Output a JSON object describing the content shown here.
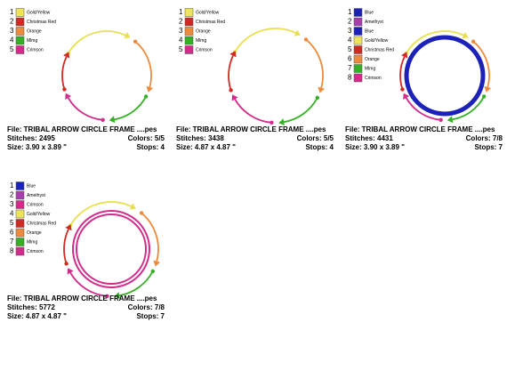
{
  "panels": [
    {
      "legend": [
        {
          "number": "1",
          "color": "#efe35a",
          "name": "Gold/Yellow"
        },
        {
          "number": "2",
          "color": "#d22a22",
          "name": "Christmas Red"
        },
        {
          "number": "3",
          "color": "#ee8a3c",
          "name": "Orange"
        },
        {
          "number": "4",
          "color": "#33b024",
          "name": "Mlmg"
        },
        {
          "number": "5",
          "color": "#d42a8c",
          "name": "Crimson"
        }
      ],
      "file": "File: TRIBAL ARROW CIRCLE FRAME ....pes",
      "stitches": "Stitches: 2495",
      "colors": "Colors: 5/5",
      "size": "Size: 3.90 x 3.89 \"",
      "stops": "Stops: 4"
    },
    {
      "legend": [
        {
          "number": "1",
          "color": "#efe35a",
          "name": "Gold/Yellow"
        },
        {
          "number": "2",
          "color": "#d22a22",
          "name": "Christmas Red"
        },
        {
          "number": "3",
          "color": "#ee8a3c",
          "name": "Orange"
        },
        {
          "number": "4",
          "color": "#33b024",
          "name": "Mlmg"
        },
        {
          "number": "5",
          "color": "#d42a8c",
          "name": "Crimson"
        }
      ],
      "file": "File: TRIBAL ARROW CIRCLE FRAME ....pes",
      "stitches": "Stitches: 3438",
      "colors": "Colors: 5/5",
      "size": "Size: 4.87 x 4.87 \"",
      "stops": "Stops: 4"
    },
    {
      "legend": [
        {
          "number": "1",
          "color": "#1c22b8",
          "name": "Blue"
        },
        {
          "number": "2",
          "color": "#a83cb0",
          "name": "Amethyst"
        },
        {
          "number": "3",
          "color": "#1c22b8",
          "name": "Blue"
        },
        {
          "number": "4",
          "color": "#efe35a",
          "name": "Gold/Yellow"
        },
        {
          "number": "5",
          "color": "#d22a22",
          "name": "Christmas Red"
        },
        {
          "number": "6",
          "color": "#ee8a3c",
          "name": "Orange"
        },
        {
          "number": "7",
          "color": "#33b024",
          "name": "Mlmg"
        },
        {
          "number": "8",
          "color": "#d42a8c",
          "name": "Crimson"
        }
      ],
      "file": "File: TRIBAL ARROW CIRCLE FRAME ....pes",
      "stitches": "Stitches: 4431",
      "colors": "Colors: 7/8",
      "size": "Size: 3.90 x 3.89 \"",
      "stops": "Stops: 7"
    },
    {
      "legend": [
        {
          "number": "1",
          "color": "#1c22b8",
          "name": "Blue"
        },
        {
          "number": "2",
          "color": "#a83cb0",
          "name": "Amethyst"
        },
        {
          "number": "3",
          "color": "#d42a8c",
          "name": "Crimson"
        },
        {
          "number": "4",
          "color": "#efe35a",
          "name": "Gold/Yellow"
        },
        {
          "number": "5",
          "color": "#d22a22",
          "name": "Christmas Red"
        },
        {
          "number": "6",
          "color": "#ee8a3c",
          "name": "Orange"
        },
        {
          "number": "7",
          "color": "#33b024",
          "name": "Mlmg"
        },
        {
          "number": "8",
          "color": "#d42a8c",
          "name": "Crimson"
        }
      ],
      "file": "File: TRIBAL ARROW CIRCLE FRAME ....pes",
      "stitches": "Stitches: 5772",
      "colors": "Colors: 7/8",
      "size": "Size: 4.87 x 4.87 \"",
      "stops": "Stops: 7"
    }
  ]
}
